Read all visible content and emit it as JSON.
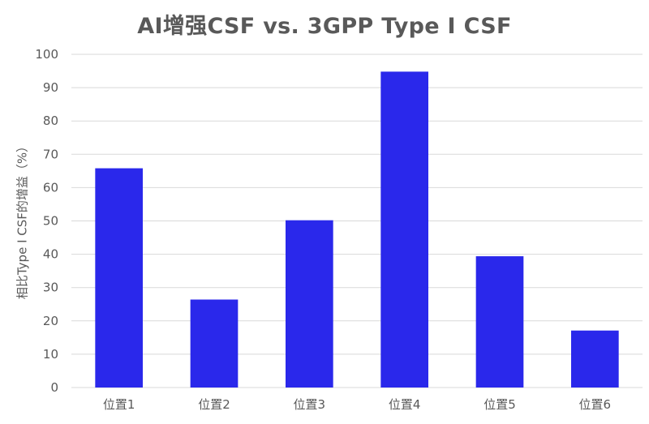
{
  "chart_data": {
    "type": "bar",
    "title": "AI增强CSF vs. 3GPP Type I CSF",
    "xlabel": "",
    "ylabel": "相比Type I CSF的增益（%）",
    "categories": [
      "位置1",
      "位置2",
      "位置3",
      "位置4",
      "位置5",
      "位置6"
    ],
    "series": [
      {
        "values": [
          65.8,
          26.4,
          50.2,
          94.8,
          39.4,
          17.1
        ]
      }
    ],
    "ylim": [
      0,
      100
    ],
    "yticks": [
      0,
      10,
      20,
      30,
      40,
      50,
      60,
      70,
      80,
      90,
      100
    ],
    "grid": true,
    "legend": "none",
    "colors": {
      "bar": "#2A28EB",
      "grid": "#D9D9D9",
      "text": "#595959"
    }
  }
}
